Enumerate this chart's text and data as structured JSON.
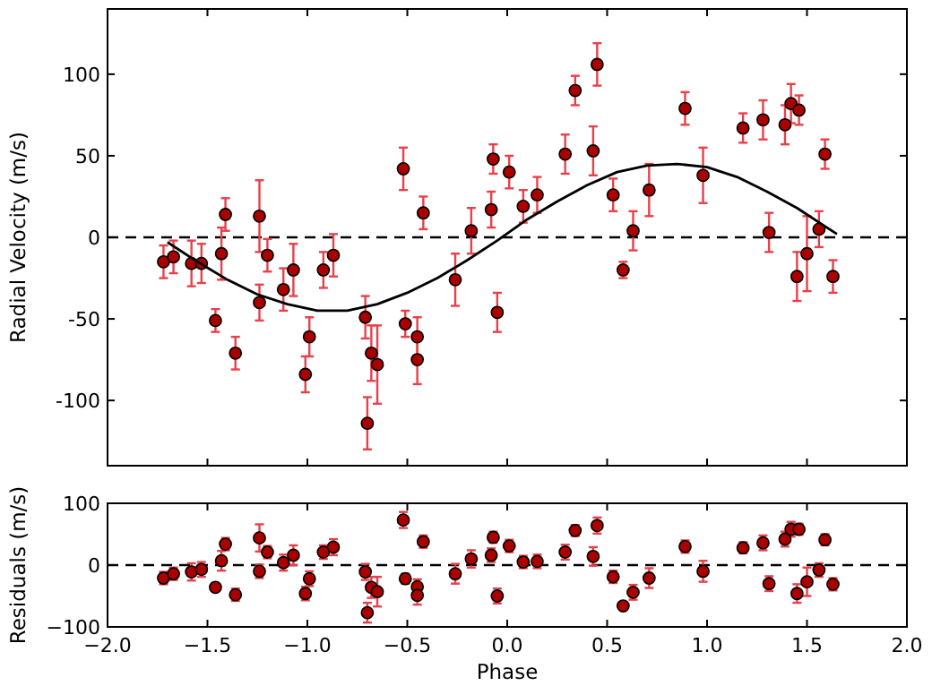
{
  "chart_data": [
    {
      "type": "scatter",
      "ylabel": "Radial Velocity (m/s)",
      "xlim": [
        -2,
        2
      ],
      "ylim": [
        -140,
        140
      ],
      "tick_labels": "y",
      "xticks": [
        {
          "value": -2,
          "label": null
        },
        {
          "value": -1.5,
          "label": null
        },
        {
          "value": -1,
          "label": null
        },
        {
          "value": -0.5,
          "label": null
        },
        {
          "value": 0,
          "label": null
        },
        {
          "value": 0.5,
          "label": null
        },
        {
          "value": 1,
          "label": null
        },
        {
          "value": 1.5,
          "label": null
        },
        {
          "value": 2,
          "label": null
        }
      ],
      "yticks": [
        -100,
        -50,
        0,
        50,
        100
      ],
      "grid": false,
      "ref_lines": [
        {
          "axis": "y",
          "value": 0,
          "color": "#000000",
          "line_style": "dashed"
        }
      ],
      "series": [
        {
          "type": "scatter",
          "color": "#aa0000",
          "marker": "circle",
          "x": [
            -1.72,
            -1.67,
            -1.58,
            -1.53,
            -1.46,
            -1.43,
            -1.41,
            -1.36,
            -1.24,
            -1.24,
            -1.2,
            -1.12,
            -1.07,
            -1.01,
            -0.99,
            -0.92,
            -0.87,
            -0.71,
            -0.7,
            -0.68,
            -0.65,
            -0.52,
            -0.51,
            -0.45,
            -0.45,
            -0.42,
            -0.26,
            -0.18,
            -0.08,
            -0.07,
            -0.05,
            0.01,
            0.08,
            0.15,
            0.29,
            0.34,
            0.43,
            0.45,
            0.53,
            0.58,
            0.63,
            0.71,
            0.89,
            0.98,
            1.18,
            1.28,
            1.31,
            1.39,
            1.42,
            1.45,
            1.46,
            1.5,
            1.56,
            1.59,
            1.63
          ],
          "values": [
            -15,
            -12,
            -16,
            -16,
            -51,
            -10,
            14,
            -71,
            13,
            -40,
            -11,
            -32,
            -20,
            -84,
            -61,
            -20,
            -11,
            -49,
            -114,
            -71,
            -78,
            42,
            -53,
            -61,
            -75,
            15,
            -26,
            4,
            17,
            48,
            -46,
            40,
            19,
            26,
            51,
            90,
            53,
            106,
            26,
            -20,
            4,
            29,
            79,
            38,
            67,
            72,
            3,
            69,
            82,
            -24,
            78,
            -10,
            5,
            51,
            -24
          ],
          "errors": [
            10,
            10,
            14,
            12,
            7,
            16,
            10,
            10,
            22,
            11,
            10,
            13,
            16,
            11,
            12,
            11,
            13,
            13,
            16,
            17,
            24,
            13,
            8,
            12,
            15,
            10,
            16,
            14,
            11,
            9,
            12,
            10,
            10,
            11,
            12,
            9,
            15,
            13,
            10,
            5,
            12,
            16,
            10,
            17,
            9,
            12,
            12,
            12,
            12,
            15,
            9,
            23,
            11,
            9,
            10
          ]
        },
        {
          "type": "line",
          "color": "#000000",
          "marker": "none",
          "line_style": "solid",
          "x": [
            -1.7,
            -1.55,
            -1.4,
            -1.25,
            -1.1,
            -0.95,
            -0.8,
            -0.65,
            -0.5,
            -0.35,
            -0.2,
            -0.05,
            0.1,
            0.25,
            0.4,
            0.55,
            0.7,
            0.85,
            1,
            1.15,
            1.3,
            1.45,
            1.6,
            1.65
          ],
          "values": [
            -3,
            -15,
            -26,
            -35,
            -41,
            -45,
            -45,
            -41,
            -34,
            -25,
            -14,
            -2,
            11,
            22,
            32,
            40,
            44,
            45,
            43,
            37,
            28,
            18,
            6,
            2
          ]
        }
      ]
    },
    {
      "type": "scatter",
      "xlabel": "Phase",
      "ylabel": "Residuals (m/s)",
      "xlim": [
        -2,
        2
      ],
      "ylim": [
        -100,
        100
      ],
      "xticks": [
        {
          "value": -2,
          "label": "−2.0"
        },
        {
          "value": -1.5,
          "label": "−1.5"
        },
        {
          "value": -1,
          "label": "−1.0"
        },
        {
          "value": -0.5,
          "label": "−0.5"
        },
        {
          "value": 0,
          "label": "0.0"
        },
        {
          "value": 0.5,
          "label": "0.5"
        },
        {
          "value": 1,
          "label": "1.0"
        },
        {
          "value": 1.5,
          "label": "1.5"
        },
        {
          "value": 2,
          "label": "2.0"
        }
      ],
      "yticks": [
        {
          "value": -100,
          "label": "−100"
        },
        0,
        100
      ],
      "grid": false,
      "ref_lines": [
        {
          "axis": "y",
          "value": 0,
          "color": "#000000",
          "line_style": "dashed"
        }
      ],
      "series": [
        {
          "type": "scatter",
          "color": "#aa0000",
          "marker": "circle",
          "x": [
            -1.72,
            -1.67,
            -1.58,
            -1.53,
            -1.46,
            -1.43,
            -1.41,
            -1.36,
            -1.24,
            -1.24,
            -1.2,
            -1.12,
            -1.07,
            -1.01,
            -0.99,
            -0.92,
            -0.87,
            -0.71,
            -0.7,
            -0.68,
            -0.65,
            -0.52,
            -0.51,
            -0.45,
            -0.45,
            -0.42,
            -0.26,
            -0.18,
            -0.08,
            -0.07,
            -0.05,
            0.01,
            0.08,
            0.15,
            0.29,
            0.34,
            0.43,
            0.45,
            0.53,
            0.58,
            0.63,
            0.71,
            0.89,
            0.98,
            1.18,
            1.28,
            1.31,
            1.39,
            1.42,
            1.45,
            1.46,
            1.5,
            1.56,
            1.59,
            1.63
          ],
          "values": [
            -21,
            -14,
            -11,
            -7,
            -36,
            7,
            34,
            -48,
            44,
            -10,
            21,
            4,
            16,
            -46,
            -22,
            21,
            29,
            -11,
            -77,
            -36,
            -43,
            73,
            -22,
            -35,
            -49,
            38,
            -14,
            10,
            16,
            45,
            -50,
            31,
            5,
            6,
            21,
            56,
            14,
            64,
            -19,
            -66,
            -44,
            -21,
            30,
            -10,
            28,
            36,
            -30,
            42,
            58,
            -46,
            58,
            -27,
            -8,
            41,
            -31
          ],
          "errors": [
            10,
            10,
            14,
            12,
            null,
            16,
            10,
            10,
            22,
            11,
            10,
            13,
            16,
            11,
            12,
            11,
            13,
            13,
            16,
            17,
            24,
            13,
            8,
            12,
            15,
            10,
            16,
            14,
            11,
            9,
            12,
            10,
            10,
            11,
            12,
            9,
            15,
            13,
            10,
            null,
            12,
            16,
            10,
            17,
            9,
            12,
            12,
            12,
            12,
            15,
            9,
            23,
            11,
            9,
            10
          ]
        }
      ]
    }
  ]
}
